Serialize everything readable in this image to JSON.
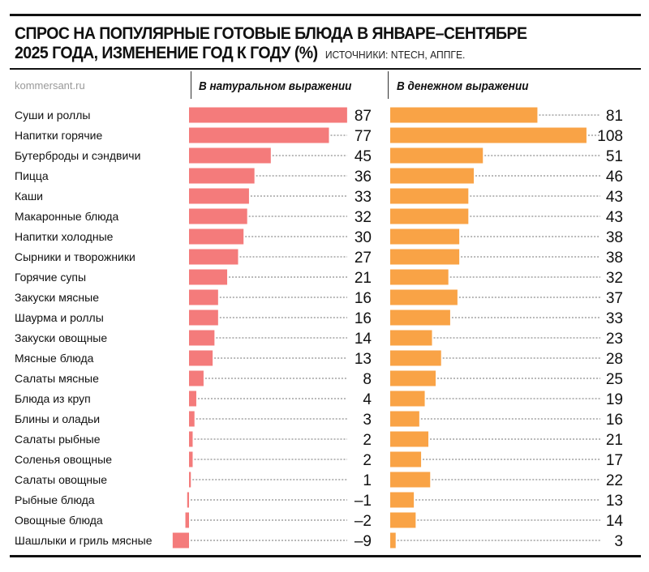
{
  "chart_data": {
    "type": "bar",
    "orientation": "horizontal",
    "title": "СПРОС НА ПОПУЛЯРНЫЕ ГОТОВЫЕ БЛЮДА В ЯНВАРЕ–СЕНТЯБРЕ",
    "title_line2": "2025 ГОДА, ИЗМЕНЕНИЕ ГОД К ГОДУ (%)",
    "source": "ИСТОЧНИКИ: NTECH, АППГЕ.",
    "brand": "kommersant.ru",
    "categories": [
      "Суши и роллы",
      "Напитки горячие",
      "Бутерброды и сэндвичи",
      "Пицца",
      "Каши",
      "Макаронные блюда",
      "Напитки холодные",
      "Сырники и творожники",
      "Горячие супы",
      "Закуски мясные",
      "Шаурма и роллы",
      "Закуски овощные",
      "Мясные блюда",
      "Салаты мясные",
      "Блюда из круп",
      "Блины и оладьи",
      "Салаты рыбные",
      "Соленья овощные",
      "Салаты овощные",
      "Рыбные блюда",
      "Овощные блюда",
      "Шашлыки и гриль мясные"
    ],
    "series": [
      {
        "name": "В натуральном выражении",
        "color": "#f47b7b",
        "values": [
          87,
          77,
          45,
          36,
          33,
          32,
          30,
          27,
          21,
          16,
          16,
          14,
          13,
          8,
          4,
          3,
          2,
          2,
          1,
          -1,
          -2,
          -9
        ]
      },
      {
        "name": "В денежном выражении",
        "color": "#f9a346",
        "values": [
          81,
          108,
          51,
          46,
          43,
          43,
          38,
          38,
          32,
          37,
          33,
          23,
          28,
          25,
          19,
          16,
          21,
          17,
          22,
          13,
          14,
          3
        ]
      }
    ],
    "grid": false,
    "value_labels": true
  }
}
